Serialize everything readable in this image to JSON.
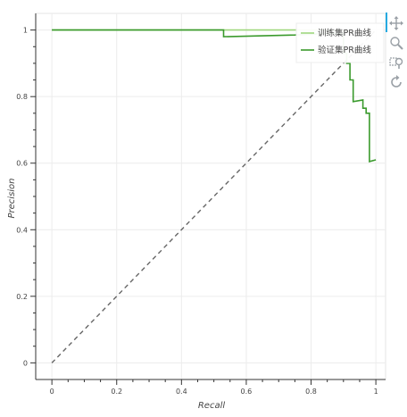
{
  "chart_data": {
    "type": "line",
    "title": "",
    "xlabel": "Recall",
    "ylabel": "Precision",
    "xlim": [
      -0.05,
      1.03
    ],
    "ylim": [
      -0.05,
      1.05
    ],
    "grid": true,
    "legend_position": "top-right",
    "x_ticks": [
      0,
      0.2,
      0.4,
      0.6,
      0.8,
      1
    ],
    "y_ticks": [
      0,
      0.2,
      0.4,
      0.6,
      0.8,
      1
    ],
    "x_tick_labels": [
      "0",
      "0.2",
      "0.4",
      "0.6",
      "0.8",
      "1"
    ],
    "y_tick_labels": [
      "0",
      "0.2",
      "0.4",
      "0.6",
      "0.8",
      "1"
    ],
    "series": [
      {
        "name": "训练集PR曲线",
        "color": "#9fd77f",
        "style": "solid",
        "points": [
          [
            0,
            1
          ],
          [
            0.79,
            1
          ],
          [
            0.88,
            0.999
          ],
          [
            0.91,
            0.995
          ],
          [
            0.93,
            0.993
          ]
        ]
      },
      {
        "name": "验证集PR曲线",
        "color": "#3a9a2c",
        "style": "solid",
        "points": [
          [
            0,
            1
          ],
          [
            0.53,
            1
          ],
          [
            0.53,
            0.98
          ],
          [
            0.75,
            0.985
          ],
          [
            0.85,
            0.99
          ],
          [
            0.9,
            0.99
          ],
          [
            0.9,
            0.93
          ],
          [
            0.91,
            0.93
          ],
          [
            0.91,
            0.9
          ],
          [
            0.92,
            0.9
          ],
          [
            0.92,
            0.85
          ],
          [
            0.93,
            0.85
          ],
          [
            0.93,
            0.785
          ],
          [
            0.96,
            0.79
          ],
          [
            0.96,
            0.765
          ],
          [
            0.97,
            0.765
          ],
          [
            0.97,
            0.75
          ],
          [
            0.98,
            0.75
          ],
          [
            0.98,
            0.605
          ],
          [
            1.0,
            0.61
          ]
        ]
      },
      {
        "name": "",
        "color": "#666666",
        "style": "dashed",
        "points": [
          [
            0,
            0
          ],
          [
            1,
            1
          ]
        ]
      }
    ]
  },
  "toolbar": {
    "tools": [
      {
        "name": "pan-tool",
        "icon": "move-arrows-icon",
        "active": true
      },
      {
        "name": "wheel-zoom-tool",
        "icon": "magnifier-icon",
        "active": false
      },
      {
        "name": "box-zoom-tool",
        "icon": "box-zoom-icon",
        "active": false
      },
      {
        "name": "reset-tool",
        "icon": "reset-icon",
        "active": false
      }
    ],
    "accent_color": "#26aae1"
  }
}
